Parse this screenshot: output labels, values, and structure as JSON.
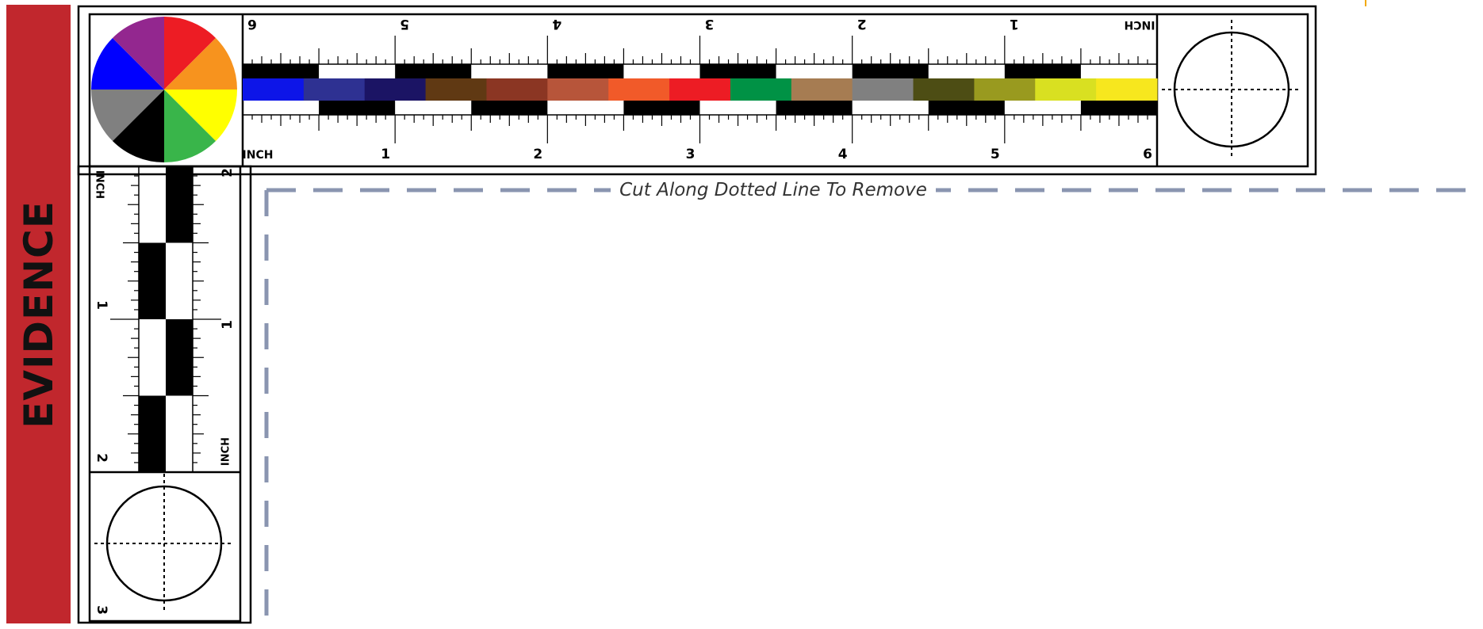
{
  "banner": {
    "text": "EVIDENCE",
    "color": "#c1272d"
  },
  "cut_line": {
    "label": "Cut Along Dotted Line To Remove",
    "color": "#8a95b0"
  },
  "horizontal_ruler": {
    "unit_label_top": "INCH",
    "unit_label_bottom": "INCH",
    "top_numbers": [
      "6",
      "5",
      "4",
      "3",
      "2",
      "1"
    ],
    "bottom_numbers": [
      "1",
      "2",
      "3",
      "4",
      "5",
      "6"
    ]
  },
  "vertical_ruler": {
    "unit_label_left": "INCH",
    "unit_label_right": "INCH",
    "left_numbers": [
      "1",
      "2",
      "3"
    ],
    "right_numbers": [
      "2",
      "1"
    ]
  },
  "color_swatches": [
    "#0d15e8",
    "#2e3192",
    "#1b1464",
    "#603913",
    "#8b3623",
    "#b7553a",
    "#f15a29",
    "#ed1c24",
    "#009245",
    "#a67c52",
    "#808080",
    "#4d4d14",
    "#999a1f",
    "#d9e021",
    "#f7e71e"
  ],
  "color_wheel": [
    {
      "name": "red",
      "color": "#ed1c24"
    },
    {
      "name": "orange",
      "color": "#f7931e"
    },
    {
      "name": "yellow",
      "color": "#ffff00"
    },
    {
      "name": "green",
      "color": "#39b54a"
    },
    {
      "name": "black",
      "color": "#000000"
    },
    {
      "name": "gray",
      "color": "#808080"
    },
    {
      "name": "blue",
      "color": "#0000ff"
    },
    {
      "name": "purple",
      "color": "#93278f"
    }
  ]
}
